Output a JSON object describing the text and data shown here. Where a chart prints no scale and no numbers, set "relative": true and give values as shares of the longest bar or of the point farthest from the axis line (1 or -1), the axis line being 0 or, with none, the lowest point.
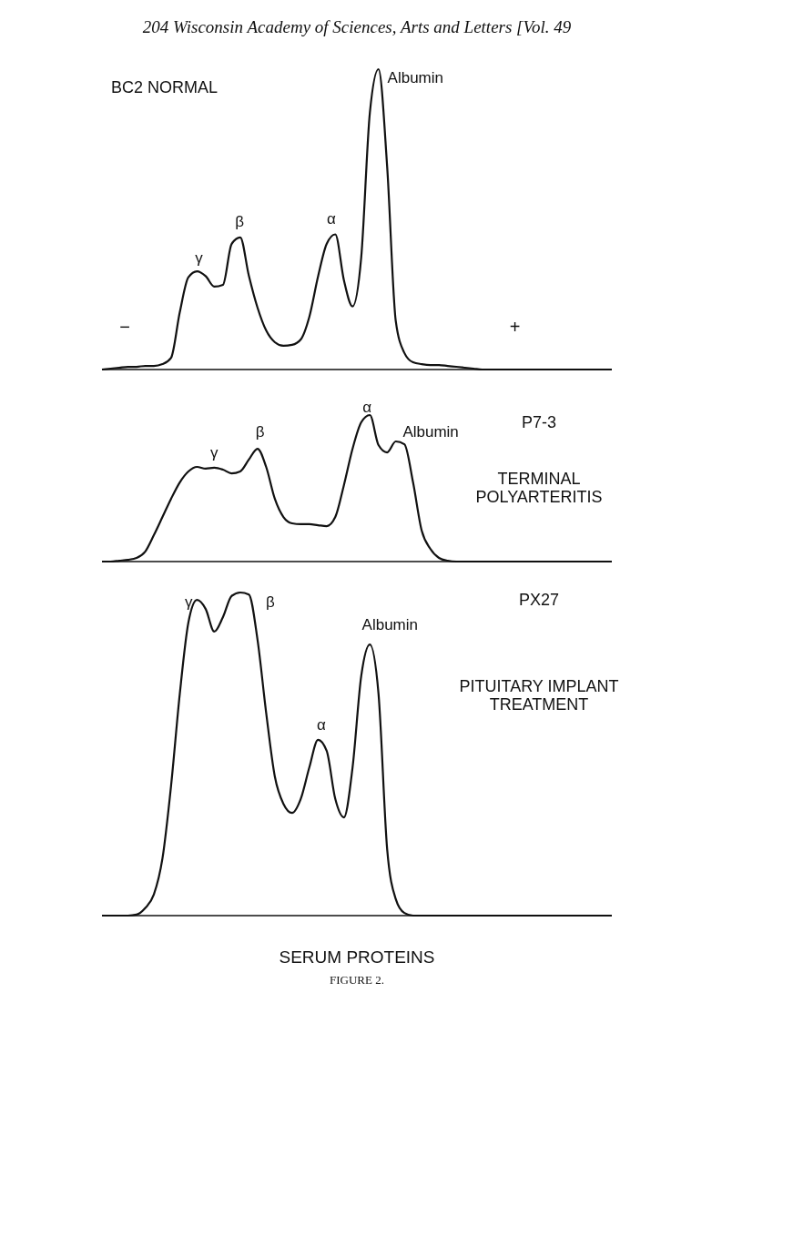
{
  "chart_data": [
    {
      "type": "line",
      "relative": true,
      "title": "BC2 NORMAL",
      "categories": [
        null,
        null,
        null,
        null,
        null,
        null,
        null,
        null,
        null,
        null,
        null,
        null,
        null,
        null,
        null,
        null,
        null,
        null,
        null,
        null,
        null,
        null,
        null,
        null,
        null,
        null,
        null,
        null,
        null,
        null,
        null,
        null,
        null,
        null,
        null,
        null,
        null,
        null,
        null,
        null,
        null,
        null,
        null,
        null,
        null,
        null,
        null,
        null,
        null,
        null,
        null,
        null,
        null,
        null,
        null,
        null,
        null,
        null,
        null,
        null
      ],
      "series": [
        {
          "color": "#111111",
          "values": [
            0,
            0.003,
            0.006,
            0.009,
            0.009,
            0.012,
            0.012,
            0.018,
            0.039,
            0.19,
            0.307,
            0.327,
            0.311,
            0.276,
            0.282,
            0.418,
            0.44,
            0.312,
            0.206,
            0.13,
            0.091,
            0.079,
            0.082,
            0.1,
            0.176,
            0.309,
            0.418,
            0.45,
            0.297,
            0.21,
            0.373,
            0.855,
            1,
            0.676,
            0.161,
            0.055,
            0.024,
            0.018,
            0.015,
            0.015,
            0.012,
            0.009,
            0.006,
            0.003,
            0,
            0,
            0,
            0,
            0,
            0,
            0,
            0,
            0,
            0,
            0,
            0,
            0,
            0,
            0,
            0
          ]
        }
      ],
      "annotations": [
        "204 Wisconsin Academy of Sciences, Arts and Letters [Vol. 49",
        "−",
        "+",
        "γ",
        "β",
        "α",
        "Albumin"
      ]
    },
    {
      "type": "line",
      "relative": true,
      "title": "P7-3",
      "subtitle": "TERMINAL\nPOLYARTERITIS",
      "categories": [
        null,
        null,
        null,
        null,
        null,
        null,
        null,
        null,
        null,
        null,
        null,
        null,
        null,
        null,
        null,
        null,
        null,
        null,
        null,
        null,
        null,
        null,
        null,
        null,
        null,
        null,
        null,
        null,
        null,
        null,
        null,
        null,
        null,
        null,
        null,
        null,
        null,
        null,
        null,
        null,
        null,
        null,
        null,
        null,
        null,
        null,
        null,
        null,
        null,
        null,
        null,
        null,
        null,
        null,
        null,
        null,
        null,
        null,
        null,
        null
      ],
      "series": [
        {
          "color": "#111111",
          "values": [
            0,
            0,
            0.006,
            0.012,
            0.025,
            0.068,
            0.18,
            0.304,
            0.429,
            0.54,
            0.615,
            0.646,
            0.634,
            0.64,
            0.627,
            0.602,
            0.615,
            0.696,
            0.77,
            0.646,
            0.429,
            0.304,
            0.261,
            0.255,
            0.255,
            0.248,
            0.242,
            0.304,
            0.522,
            0.77,
            0.95,
            1,
            0.795,
            0.745,
            0.82,
            0.8,
            0.54,
            0.211,
            0.087,
            0.025,
            0.006,
            0,
            0,
            0,
            0,
            0,
            0,
            0,
            0,
            0,
            0,
            0,
            0,
            0,
            0,
            0,
            0,
            0,
            0,
            0
          ]
        }
      ],
      "annotations": [
        "γ",
        "β",
        "α",
        "Albumin"
      ]
    },
    {
      "type": "line",
      "relative": true,
      "title": "PX27",
      "subtitle": "PITUITARY IMPLANT\nTREATMENT",
      "categories": [
        null,
        null,
        null,
        null,
        null,
        null,
        null,
        null,
        null,
        null,
        null,
        null,
        null,
        null,
        null,
        null,
        null,
        null,
        null,
        null,
        null,
        null,
        null,
        null,
        null,
        null,
        null,
        null,
        null,
        null,
        null,
        null,
        null,
        null,
        null,
        null,
        null,
        null,
        null,
        null,
        null,
        null,
        null,
        null,
        null,
        null,
        null,
        null,
        null,
        null,
        null,
        null,
        null,
        null,
        null,
        null,
        null,
        null,
        null,
        null
      ],
      "series": [
        {
          "color": "#111111",
          "values": [
            0,
            0,
            0,
            0,
            0.003,
            0.023,
            0.065,
            0.177,
            0.403,
            0.685,
            0.907,
            0.977,
            0.949,
            0.879,
            0.924,
            0.989,
            1,
            0.994,
            0.854,
            0.628,
            0.431,
            0.346,
            0.318,
            0.361,
            0.459,
            0.544,
            0.51,
            0.361,
            0.304,
            0.459,
            0.741,
            0.839,
            0.687,
            0.206,
            0.051,
            0.008,
            0,
            0,
            0,
            0,
            0,
            0,
            0,
            0,
            0,
            0,
            0,
            0,
            0,
            0,
            0,
            0,
            0,
            0,
            0,
            0,
            0,
            0,
            0,
            0
          ]
        }
      ],
      "annotations": [
        "SERUM PROTEINS",
        "FIGURE 2.",
        "γ",
        "β",
        "α",
        "Albumin"
      ]
    }
  ]
}
